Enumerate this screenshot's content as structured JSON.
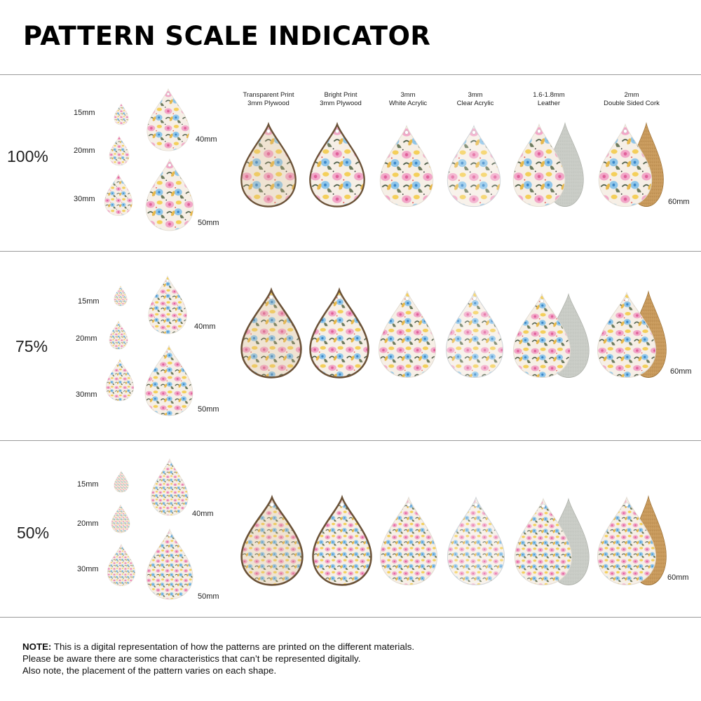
{
  "title": "PATTERN SCALE INDICATOR",
  "columns": [
    {
      "line1": "Transparent Print",
      "line2": "3mm Plywood"
    },
    {
      "line1": "Bright Print",
      "line2": "3mm Plywood"
    },
    {
      "line1": "3mm",
      "line2": "White Acrylic"
    },
    {
      "line1": "3mm",
      "line2": "Clear Acrylic"
    },
    {
      "line1": "1.6-1.8mm",
      "line2": "Leather"
    },
    {
      "line1": "2mm",
      "line2": "Double Sided Cork"
    }
  ],
  "sizes": {
    "s15": "15mm",
    "s20": "20mm",
    "s30": "30mm",
    "s40": "40mm",
    "s50": "50mm",
    "s60": "60mm"
  },
  "sections": [
    {
      "label": "100%"
    },
    {
      "label": "75%"
    },
    {
      "label": "50%"
    }
  ],
  "note": {
    "label": "NOTE:",
    "line1": "This is a digital representation of how the patterns are printed on the different materials.",
    "line2": "Please be aware there are some characteristics that can’t be represented digitally.",
    "line3": "Also note, the placement of the pattern varies on each shape."
  },
  "colors": {
    "divider": "#9a9a9a",
    "plywood_edge": "#6b5238",
    "leather_back": "#c9ccc6",
    "cork_back": "#c89a5c"
  }
}
